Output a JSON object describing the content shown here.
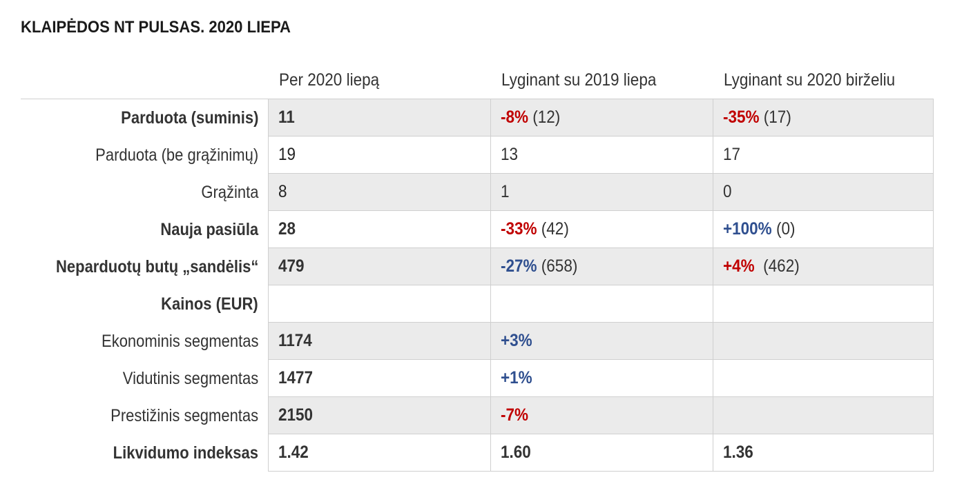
{
  "title": "KLAIPĖDOS NT PULSAS. 2020 LIEPA",
  "colors": {
    "negative": "#c00000",
    "positive": "#2f4f8f",
    "shade": "#ebebeb"
  },
  "columns": [
    "Per 2020 liepą",
    "Lyginant su 2019 liepa",
    "Lyginant su 2020 birželiu"
  ],
  "rows": [
    {
      "label": "Parduota (suminis)",
      "value": "11",
      "vs_2019": {
        "change": "-8%",
        "ref": "(12)"
      },
      "vs_2020": {
        "change": "-35%",
        "ref": "(17)"
      }
    },
    {
      "label": "Parduota (be grąžinimų)",
      "value": "19",
      "vs_2019": {
        "change": "",
        "ref": "13"
      },
      "vs_2020": {
        "change": "",
        "ref": "17"
      }
    },
    {
      "label": "Grąžinta",
      "value": "8",
      "vs_2019": {
        "change": "",
        "ref": "1"
      },
      "vs_2020": {
        "change": "",
        "ref": "0"
      }
    },
    {
      "label": "Nauja pasiūla",
      "value": "28",
      "vs_2019": {
        "change": "-33%",
        "ref": "(42)"
      },
      "vs_2020": {
        "change": "+100%",
        "ref": "(0)"
      }
    },
    {
      "label": "Neparduotų butų „sandėlis“",
      "value": "479",
      "vs_2019": {
        "change": "-27%",
        "ref": "(658)"
      },
      "vs_2020": {
        "change": "+4%",
        "ref": "(462)"
      }
    },
    {
      "label": "Kainos (EUR)",
      "value": "",
      "vs_2019": {
        "change": "",
        "ref": ""
      },
      "vs_2020": {
        "change": "",
        "ref": ""
      }
    },
    {
      "label": "Ekonominis segmentas",
      "value": "1174",
      "vs_2019": {
        "change": "+3%",
        "ref": ""
      },
      "vs_2020": {
        "change": "",
        "ref": ""
      }
    },
    {
      "label": "Vidutinis segmentas",
      "value": "1477",
      "vs_2019": {
        "change": "+1%",
        "ref": ""
      },
      "vs_2020": {
        "change": "",
        "ref": ""
      }
    },
    {
      "label": "Prestižinis segmentas",
      "value": "2150",
      "vs_2019": {
        "change": "-7%",
        "ref": ""
      },
      "vs_2020": {
        "change": "",
        "ref": ""
      }
    },
    {
      "label": "Likvidumo indeksas",
      "value": "1.42",
      "vs_2019": {
        "change": "",
        "ref": "1.60"
      },
      "vs_2020": {
        "change": "",
        "ref": "1.36"
      }
    }
  ]
}
